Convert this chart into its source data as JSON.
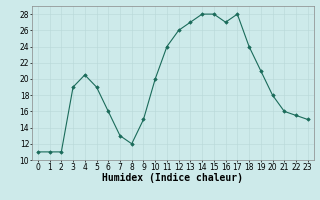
{
  "x": [
    0,
    1,
    2,
    3,
    4,
    5,
    6,
    7,
    8,
    9,
    10,
    11,
    12,
    13,
    14,
    15,
    16,
    17,
    18,
    19,
    20,
    21,
    22,
    23
  ],
  "y": [
    11,
    11,
    11,
    19,
    20.5,
    19,
    16,
    13,
    12,
    15,
    20,
    24,
    26,
    27,
    28,
    28,
    27,
    28,
    24,
    21,
    18,
    16,
    15.5,
    15
  ],
  "xlabel": "Humidex (Indice chaleur)",
  "ylim": [
    10,
    29
  ],
  "xlim": [
    -0.5,
    23.5
  ],
  "yticks": [
    10,
    12,
    14,
    16,
    18,
    20,
    22,
    24,
    26,
    28
  ],
  "xticks": [
    0,
    1,
    2,
    3,
    4,
    5,
    6,
    7,
    8,
    9,
    10,
    11,
    12,
    13,
    14,
    15,
    16,
    17,
    18,
    19,
    20,
    21,
    22,
    23
  ],
  "line_color": "#1a6b5a",
  "marker_color": "#1a6b5a",
  "bg_color": "#cdeaea",
  "grid_color": "#b8d8d8",
  "label_fontsize": 7,
  "tick_fontsize": 5.5
}
